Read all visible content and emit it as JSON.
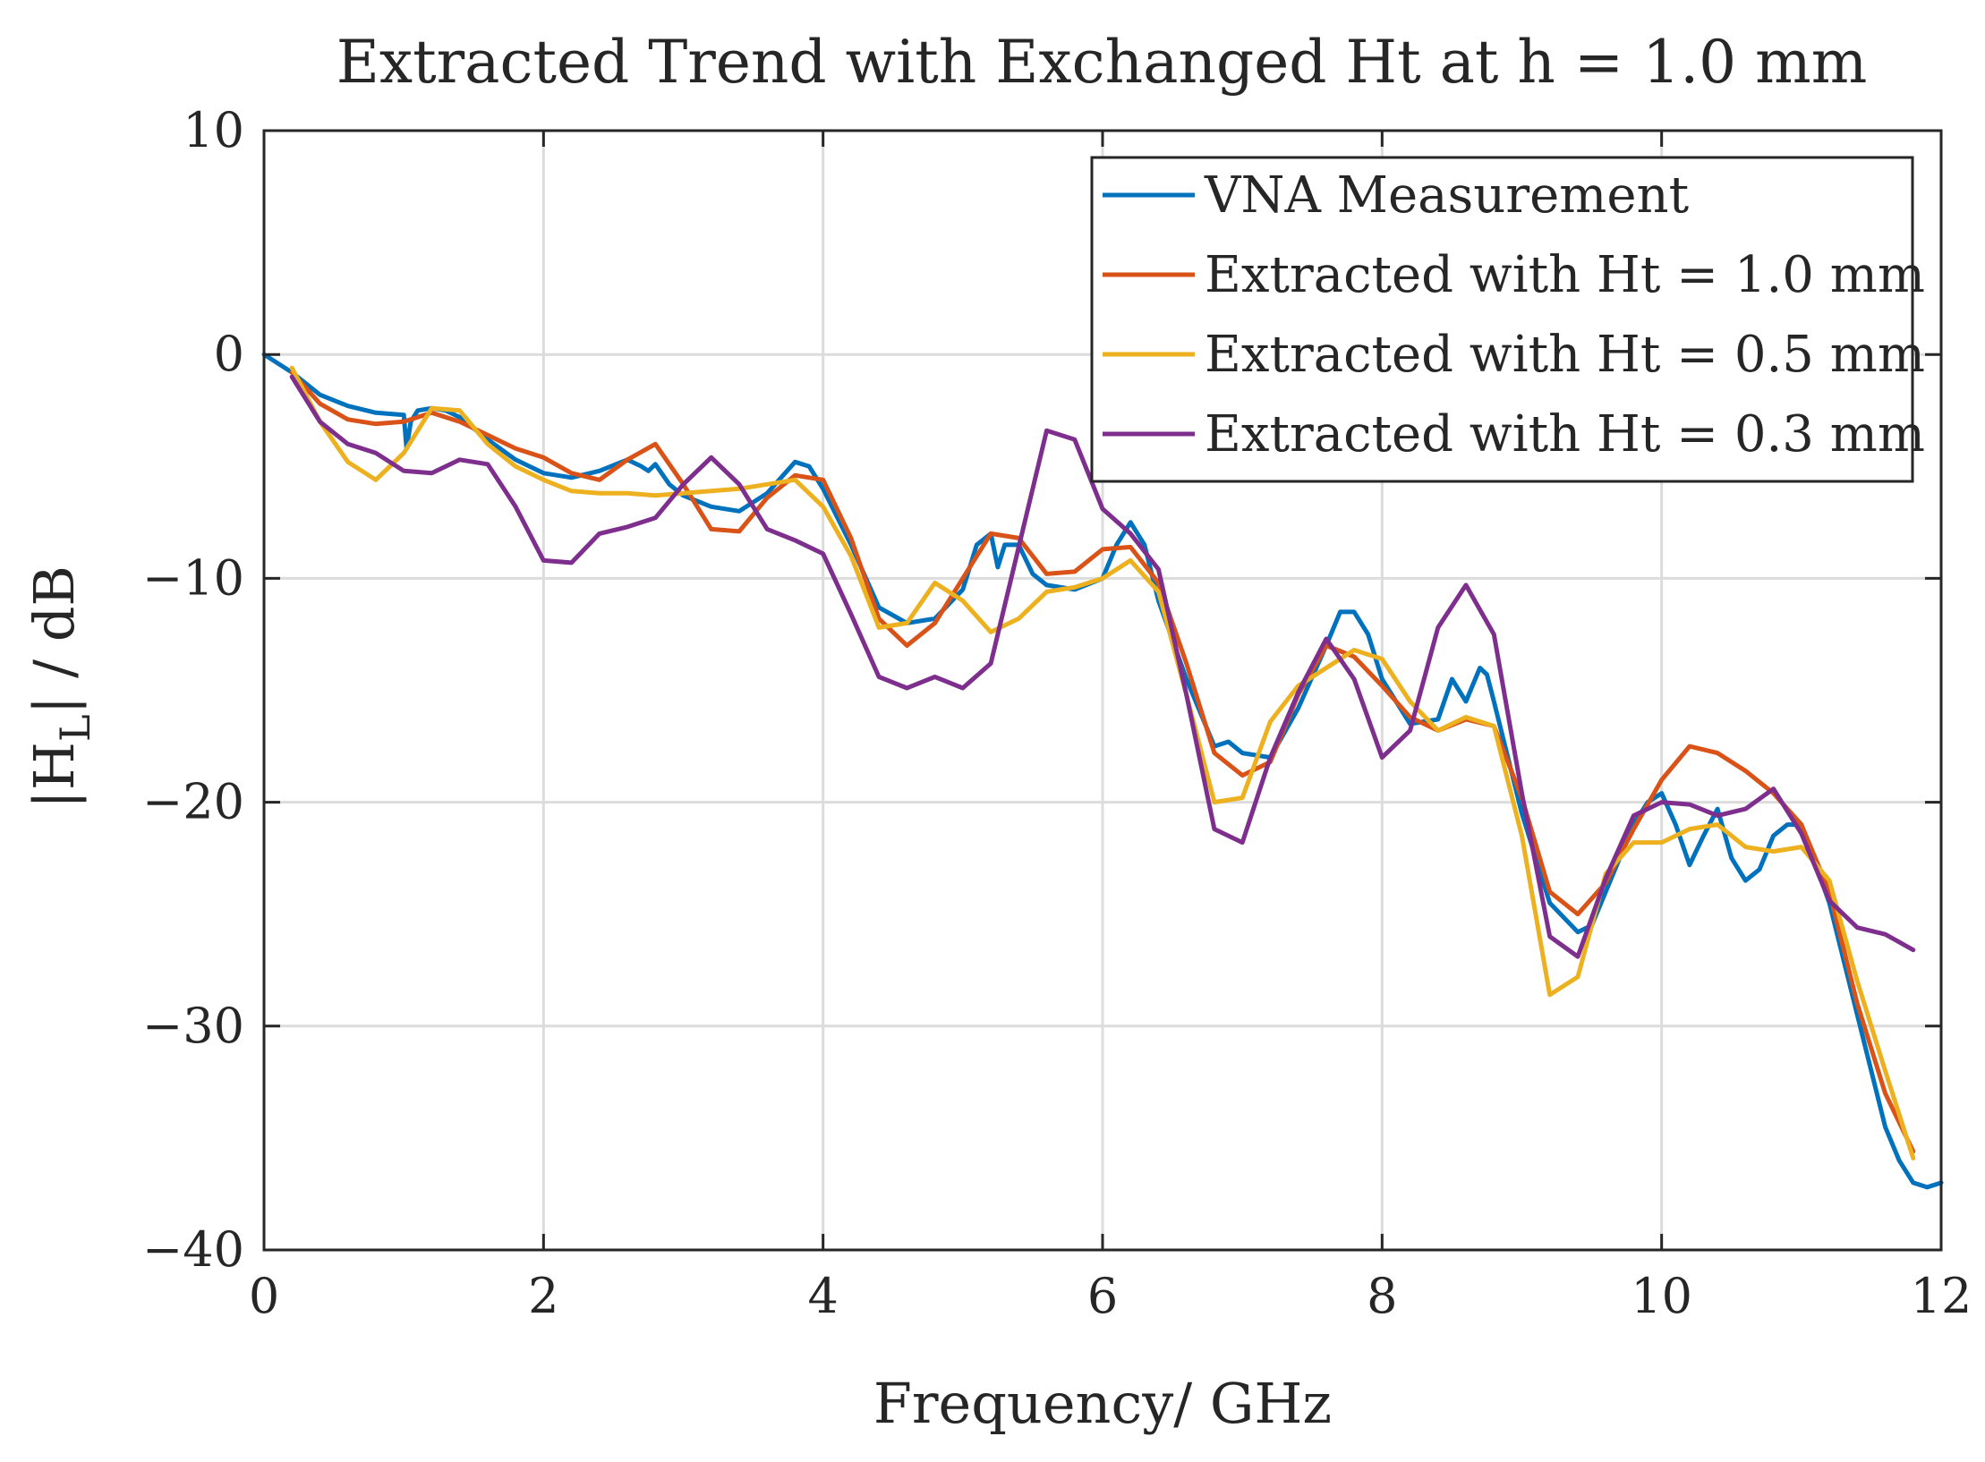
{
  "chart_data": {
    "type": "line",
    "title": "Extracted Trend with Exchanged Ht at h = 1.0 mm",
    "xlabel": "Frequency/ GHz",
    "ylabel_main": "|H",
    "ylabel_sub": "L",
    "ylabel_rest": "| / dB",
    "xlim": [
      0,
      12
    ],
    "ylim": [
      -40,
      10
    ],
    "xticks": [
      0,
      2,
      4,
      6,
      8,
      10,
      12
    ],
    "yticks": [
      -40,
      -30,
      -20,
      -10,
      0,
      10
    ],
    "xtick_labels": [
      "0",
      "2",
      "4",
      "6",
      "8",
      "10",
      "12"
    ],
    "ytick_labels": [
      "−40",
      "−30",
      "−20",
      "−10",
      "0",
      "10"
    ],
    "grid": true,
    "legend_position": "top-right",
    "series": [
      {
        "name": "VNA Measurement",
        "color": "#0072BD",
        "x": [
          0,
          0.2,
          0.4,
          0.6,
          0.8,
          1.0,
          1.02,
          1.05,
          1.1,
          1.2,
          1.3,
          1.4,
          1.6,
          1.8,
          2.0,
          2.2,
          2.4,
          2.6,
          2.7,
          2.75,
          2.8,
          2.9,
          3.0,
          3.2,
          3.4,
          3.6,
          3.8,
          3.9,
          4.0,
          4.2,
          4.4,
          4.6,
          4.8,
          5.0,
          5.1,
          5.2,
          5.25,
          5.3,
          5.4,
          5.5,
          5.6,
          5.8,
          6.0,
          6.1,
          6.2,
          6.3,
          6.4,
          6.6,
          6.8,
          6.9,
          7.0,
          7.2,
          7.4,
          7.6,
          7.7,
          7.8,
          7.9,
          8.0,
          8.2,
          8.4,
          8.5,
          8.6,
          8.7,
          8.75,
          8.8,
          9.0,
          9.2,
          9.4,
          9.5,
          9.6,
          9.8,
          9.9,
          10.0,
          10.1,
          10.2,
          10.3,
          10.4,
          10.5,
          10.6,
          10.7,
          10.8,
          10.9,
          11.0,
          11.2,
          11.4,
          11.6,
          11.7,
          11.8,
          11.9,
          12.0
        ],
        "y": [
          0,
          -0.8,
          -1.8,
          -2.3,
          -2.6,
          -2.7,
          -4.2,
          -3.0,
          -2.5,
          -2.4,
          -2.5,
          -2.8,
          -3.8,
          -4.7,
          -5.3,
          -5.5,
          -5.2,
          -4.7,
          -5.0,
          -5.2,
          -4.9,
          -5.8,
          -6.3,
          -6.8,
          -7.0,
          -6.2,
          -4.8,
          -5.0,
          -6.0,
          -8.5,
          -11.3,
          -12.0,
          -11.8,
          -10.5,
          -8.5,
          -8.0,
          -9.5,
          -8.5,
          -8.5,
          -9.8,
          -10.3,
          -10.5,
          -10.0,
          -8.5,
          -7.5,
          -8.5,
          -11.0,
          -14.5,
          -17.5,
          -17.3,
          -17.8,
          -18.0,
          -15.8,
          -13.0,
          -11.5,
          -11.5,
          -12.5,
          -14.5,
          -16.5,
          -16.3,
          -14.5,
          -15.5,
          -14.0,
          -14.3,
          -15.5,
          -20.5,
          -24.5,
          -25.8,
          -25.5,
          -24.0,
          -21.0,
          -20.0,
          -19.6,
          -21.0,
          -22.8,
          -21.5,
          -20.3,
          -22.5,
          -23.5,
          -23.0,
          -21.5,
          -21.0,
          -21.0,
          -24.5,
          -29.5,
          -34.5,
          -36.0,
          -37.0,
          -37.2,
          -37.0
        ]
      },
      {
        "name": "Extracted with Ht = 1.0 mm",
        "color": "#D95319",
        "x": [
          0.2,
          0.4,
          0.6,
          0.8,
          1.0,
          1.2,
          1.4,
          1.6,
          1.8,
          2.0,
          2.2,
          2.4,
          2.6,
          2.8,
          3.0,
          3.2,
          3.4,
          3.6,
          3.8,
          4.0,
          4.2,
          4.4,
          4.6,
          4.8,
          5.0,
          5.2,
          5.4,
          5.6,
          5.8,
          6.0,
          6.2,
          6.4,
          6.6,
          6.8,
          7.0,
          7.2,
          7.4,
          7.6,
          7.8,
          8.0,
          8.2,
          8.4,
          8.6,
          8.8,
          9.0,
          9.2,
          9.4,
          9.6,
          9.8,
          10.0,
          10.2,
          10.4,
          10.6,
          10.8,
          11.0,
          11.2,
          11.4,
          11.6,
          11.8
        ],
        "y": [
          -0.8,
          -2.2,
          -2.9,
          -3.1,
          -3.0,
          -2.6,
          -3.0,
          -3.6,
          -4.2,
          -4.6,
          -5.3,
          -5.6,
          -4.7,
          -4.0,
          -5.8,
          -7.8,
          -7.9,
          -6.4,
          -5.4,
          -5.6,
          -8.2,
          -11.8,
          -13.0,
          -12.0,
          -10.0,
          -8.0,
          -8.2,
          -9.8,
          -9.7,
          -8.7,
          -8.6,
          -10.2,
          -13.8,
          -17.8,
          -18.8,
          -18.2,
          -15.2,
          -13.0,
          -13.5,
          -14.8,
          -16.2,
          -16.8,
          -16.3,
          -16.6,
          -19.8,
          -24.0,
          -25.0,
          -23.6,
          -21.2,
          -19.0,
          -17.5,
          -17.8,
          -18.6,
          -19.6,
          -21.0,
          -24.0,
          -29.0,
          -33.0,
          -35.6
        ]
      },
      {
        "name": "Extracted with Ht = 0.5 mm",
        "color": "#EDB120",
        "x": [
          0.2,
          0.4,
          0.6,
          0.8,
          1.0,
          1.2,
          1.4,
          1.6,
          1.8,
          2.0,
          2.2,
          2.4,
          2.6,
          2.8,
          3.0,
          3.2,
          3.4,
          3.6,
          3.8,
          4.0,
          4.2,
          4.4,
          4.6,
          4.8,
          5.0,
          5.2,
          5.4,
          5.6,
          5.8,
          6.0,
          6.2,
          6.4,
          6.6,
          6.8,
          7.0,
          7.2,
          7.4,
          7.6,
          7.8,
          8.0,
          8.2,
          8.4,
          8.6,
          8.8,
          9.0,
          9.2,
          9.4,
          9.6,
          9.8,
          10.0,
          10.2,
          10.4,
          10.6,
          10.8,
          11.0,
          11.2,
          11.4,
          11.6,
          11.8
        ],
        "y": [
          -0.6,
          -3.0,
          -4.8,
          -5.6,
          -4.4,
          -2.4,
          -2.5,
          -4.0,
          -5.0,
          -5.6,
          -6.1,
          -6.2,
          -6.2,
          -6.3,
          -6.2,
          -6.1,
          -6.0,
          -5.8,
          -5.6,
          -6.8,
          -9.0,
          -12.2,
          -12.0,
          -10.2,
          -11.0,
          -12.4,
          -11.8,
          -10.6,
          -10.4,
          -10.0,
          -9.2,
          -10.6,
          -15.2,
          -20.0,
          -19.8,
          -16.4,
          -14.8,
          -14.0,
          -13.2,
          -13.6,
          -15.5,
          -16.8,
          -16.2,
          -16.6,
          -21.5,
          -28.6,
          -27.8,
          -23.2,
          -21.8,
          -21.8,
          -21.2,
          -21.0,
          -22.0,
          -22.2,
          -22.0,
          -23.5,
          -28.0,
          -32.0,
          -35.9
        ]
      },
      {
        "name": "Extracted with Ht = 0.3 mm",
        "color": "#7E2F8E",
        "x": [
          0.2,
          0.4,
          0.6,
          0.8,
          1.0,
          1.2,
          1.4,
          1.6,
          1.8,
          2.0,
          2.2,
          2.4,
          2.6,
          2.8,
          3.0,
          3.2,
          3.4,
          3.6,
          3.8,
          4.0,
          4.2,
          4.4,
          4.6,
          4.8,
          5.0,
          5.2,
          5.4,
          5.6,
          5.8,
          6.0,
          6.2,
          6.4,
          6.6,
          6.8,
          7.0,
          7.2,
          7.4,
          7.6,
          7.8,
          8.0,
          8.2,
          8.4,
          8.6,
          8.8,
          9.0,
          9.2,
          9.4,
          9.6,
          9.8,
          10.0,
          10.2,
          10.4,
          10.6,
          10.8,
          11.0,
          11.2,
          11.4,
          11.6,
          11.8
        ],
        "y": [
          -1.0,
          -3.0,
          -4.0,
          -4.4,
          -5.2,
          -5.3,
          -4.7,
          -4.9,
          -6.8,
          -9.2,
          -9.3,
          -8.0,
          -7.7,
          -7.3,
          -5.8,
          -4.6,
          -5.8,
          -7.8,
          -8.3,
          -8.9,
          -11.6,
          -14.4,
          -14.9,
          -14.4,
          -14.9,
          -13.8,
          -8.6,
          -3.4,
          -3.8,
          -6.9,
          -8.0,
          -9.6,
          -15.2,
          -21.2,
          -21.8,
          -18.0,
          -15.1,
          -12.7,
          -14.5,
          -18.0,
          -16.8,
          -12.2,
          -10.3,
          -12.5,
          -19.6,
          -26.0,
          -26.9,
          -23.4,
          -20.6,
          -20.0,
          -20.1,
          -20.6,
          -20.3,
          -19.4,
          -21.4,
          -24.4,
          -25.6,
          -25.9,
          -26.6
        ]
      }
    ]
  }
}
